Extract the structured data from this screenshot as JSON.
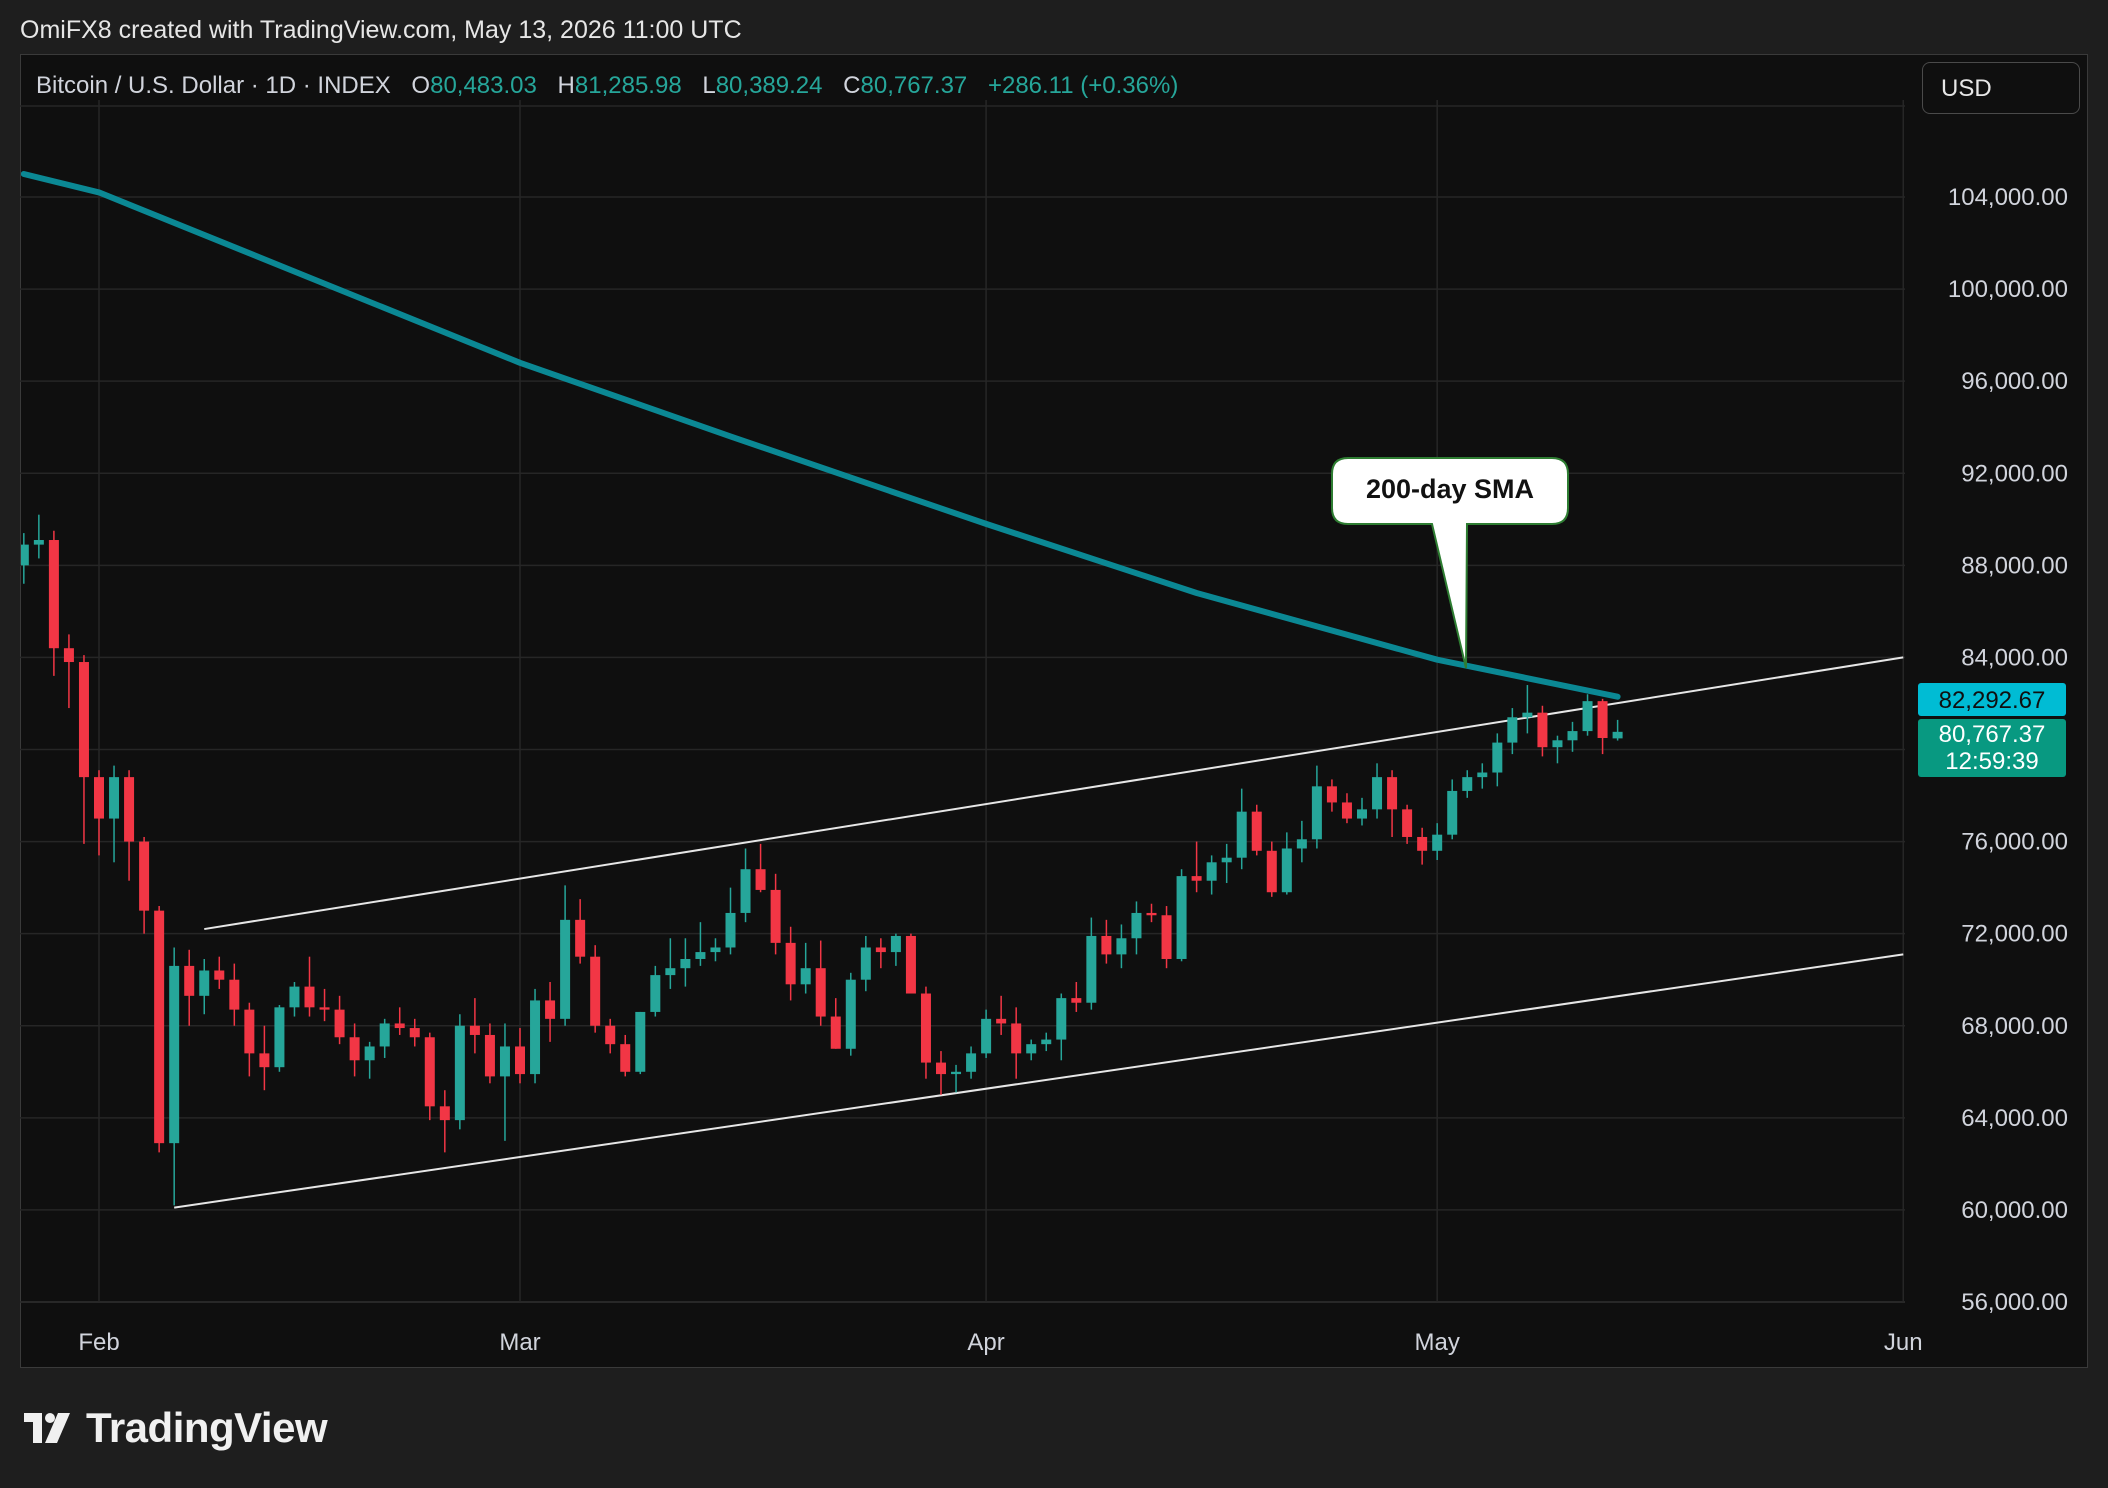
{
  "header": {
    "credit": "OmiFX8 created with TradingView.com, May 13, 2026 11:00 UTC"
  },
  "legend": {
    "symbol": "Bitcoin / U.S. Dollar · 1D · INDEX",
    "open_label": "O",
    "open": "80,483.03",
    "high_label": "H",
    "high": "81,285.98",
    "low_label": "L",
    "low": "80,389.24",
    "close_label": "C",
    "close": "80,767.37",
    "change": "+286.11 (+0.36%)"
  },
  "currency": {
    "selected": "USD"
  },
  "footer": {
    "logo_text": "TradingView",
    "logo_icon": "tradingview-logo-icon"
  },
  "colors": {
    "up": "#26a69a",
    "down": "#f23645",
    "sma": "#0b8894",
    "sma_badge": "#00bcd4",
    "channel": "#e6e6e6"
  },
  "chart_data": {
    "type": "candlestick",
    "annotation": "200-day SMA",
    "y_ticks": [
      "104,000.00",
      "100,000.00",
      "96,000.00",
      "92,000.00",
      "88,000.00",
      "84,000.00",
      "76,000.00",
      "72,000.00",
      "68,000.00",
      "64,000.00",
      "60,000.00",
      "56,000.00"
    ],
    "y_tick_values": [
      104000,
      100000,
      96000,
      92000,
      88000,
      84000,
      76000,
      72000,
      68000,
      64000,
      60000,
      56000
    ],
    "ylim": [
      56000,
      108000
    ],
    "x_ticks": [
      {
        "label": "Feb",
        "date": "2026-02-01"
      },
      {
        "label": "Mar",
        "date": "2026-03-01"
      },
      {
        "label": "Apr",
        "date": "2026-04-01"
      },
      {
        "label": "May",
        "date": "2026-05-01"
      },
      {
        "label": "Jun",
        "date": "2026-06-01"
      }
    ],
    "xlim": [
      "2026-01-27",
      "2026-06-02"
    ],
    "badges": {
      "sma_value": "82,292.67",
      "last_price": "80,767.37",
      "countdown": "12:59:39"
    },
    "candles": [
      {
        "date": "2026-01-27",
        "o": 88000,
        "h": 89400,
        "l": 87200,
        "c": 88900
      },
      {
        "date": "2026-01-28",
        "o": 88900,
        "h": 90200,
        "l": 88300,
        "c": 89100
      },
      {
        "date": "2026-01-29",
        "o": 89100,
        "h": 89500,
        "l": 83200,
        "c": 84400
      },
      {
        "date": "2026-01-30",
        "o": 84400,
        "h": 85000,
        "l": 81800,
        "c": 83800
      },
      {
        "date": "2026-01-31",
        "o": 83800,
        "h": 84100,
        "l": 75900,
        "c": 78800
      },
      {
        "date": "2026-02-01",
        "o": 78800,
        "h": 79100,
        "l": 75400,
        "c": 77000
      },
      {
        "date": "2026-02-02",
        "o": 77000,
        "h": 79300,
        "l": 75100,
        "c": 78800
      },
      {
        "date": "2026-02-03",
        "o": 78800,
        "h": 79100,
        "l": 74300,
        "c": 76000
      },
      {
        "date": "2026-02-04",
        "o": 76000,
        "h": 76200,
        "l": 72000,
        "c": 73000
      },
      {
        "date": "2026-02-05",
        "o": 73000,
        "h": 73200,
        "l": 62500,
        "c": 62900
      },
      {
        "date": "2026-02-06",
        "o": 62900,
        "h": 71400,
        "l": 60200,
        "c": 70600
      },
      {
        "date": "2026-02-07",
        "o": 70600,
        "h": 71300,
        "l": 68000,
        "c": 69300
      },
      {
        "date": "2026-02-08",
        "o": 69300,
        "h": 70900,
        "l": 68500,
        "c": 70400
      },
      {
        "date": "2026-02-09",
        "o": 70400,
        "h": 71000,
        "l": 69600,
        "c": 70000
      },
      {
        "date": "2026-02-10",
        "o": 70000,
        "h": 70700,
        "l": 68000,
        "c": 68700
      },
      {
        "date": "2026-02-11",
        "o": 68700,
        "h": 69000,
        "l": 65800,
        "c": 66800
      },
      {
        "date": "2026-02-12",
        "o": 66800,
        "h": 68000,
        "l": 65200,
        "c": 66200
      },
      {
        "date": "2026-02-13",
        "o": 66200,
        "h": 68900,
        "l": 66000,
        "c": 68800
      },
      {
        "date": "2026-02-14",
        "o": 68800,
        "h": 69900,
        "l": 68400,
        "c": 69700
      },
      {
        "date": "2026-02-15",
        "o": 69700,
        "h": 71000,
        "l": 68400,
        "c": 68800
      },
      {
        "date": "2026-02-16",
        "o": 68800,
        "h": 69600,
        "l": 68200,
        "c": 68700
      },
      {
        "date": "2026-02-17",
        "o": 68700,
        "h": 69300,
        "l": 67200,
        "c": 67500
      },
      {
        "date": "2026-02-18",
        "o": 67500,
        "h": 68100,
        "l": 65800,
        "c": 66500
      },
      {
        "date": "2026-02-19",
        "o": 66500,
        "h": 67300,
        "l": 65700,
        "c": 67100
      },
      {
        "date": "2026-02-20",
        "o": 67100,
        "h": 68300,
        "l": 66600,
        "c": 68100
      },
      {
        "date": "2026-02-21",
        "o": 68100,
        "h": 68800,
        "l": 67600,
        "c": 67900
      },
      {
        "date": "2026-02-22",
        "o": 67900,
        "h": 68300,
        "l": 67100,
        "c": 67500
      },
      {
        "date": "2026-02-23",
        "o": 67500,
        "h": 67700,
        "l": 63900,
        "c": 64500
      },
      {
        "date": "2026-02-24",
        "o": 64500,
        "h": 65200,
        "l": 62500,
        "c": 63900
      },
      {
        "date": "2026-02-25",
        "o": 63900,
        "h": 68500,
        "l": 63500,
        "c": 68000
      },
      {
        "date": "2026-02-26",
        "o": 68000,
        "h": 69200,
        "l": 66800,
        "c": 67600
      },
      {
        "date": "2026-02-27",
        "o": 67600,
        "h": 68100,
        "l": 65500,
        "c": 65800
      },
      {
        "date": "2026-02-28",
        "o": 65800,
        "h": 68100,
        "l": 63000,
        "c": 67100
      },
      {
        "date": "2026-03-01",
        "o": 67100,
        "h": 67900,
        "l": 65500,
        "c": 65900
      },
      {
        "date": "2026-03-02",
        "o": 65900,
        "h": 69600,
        "l": 65500,
        "c": 69100
      },
      {
        "date": "2026-03-03",
        "o": 69100,
        "h": 69900,
        "l": 67300,
        "c": 68300
      },
      {
        "date": "2026-03-04",
        "o": 68300,
        "h": 74100,
        "l": 68000,
        "c": 72600
      },
      {
        "date": "2026-03-05",
        "o": 72600,
        "h": 73500,
        "l": 70700,
        "c": 71000
      },
      {
        "date": "2026-03-06",
        "o": 71000,
        "h": 71500,
        "l": 67700,
        "c": 68000
      },
      {
        "date": "2026-03-07",
        "o": 68000,
        "h": 68300,
        "l": 66800,
        "c": 67200
      },
      {
        "date": "2026-03-08",
        "o": 67200,
        "h": 67600,
        "l": 65800,
        "c": 66000
      },
      {
        "date": "2026-03-09",
        "o": 66000,
        "h": 68600,
        "l": 65900,
        "c": 68600
      },
      {
        "date": "2026-03-10",
        "o": 68600,
        "h": 70600,
        "l": 68400,
        "c": 70200
      },
      {
        "date": "2026-03-11",
        "o": 70200,
        "h": 71800,
        "l": 69600,
        "c": 70500
      },
      {
        "date": "2026-03-12",
        "o": 70500,
        "h": 71800,
        "l": 69700,
        "c": 70900
      },
      {
        "date": "2026-03-13",
        "o": 70900,
        "h": 72500,
        "l": 70600,
        "c": 71200
      },
      {
        "date": "2026-03-14",
        "o": 71200,
        "h": 71800,
        "l": 70800,
        "c": 71400
      },
      {
        "date": "2026-03-15",
        "o": 71400,
        "h": 74000,
        "l": 71100,
        "c": 72900
      },
      {
        "date": "2026-03-16",
        "o": 72900,
        "h": 75700,
        "l": 72500,
        "c": 74800
      },
      {
        "date": "2026-03-17",
        "o": 74800,
        "h": 75900,
        "l": 73800,
        "c": 73900
      },
      {
        "date": "2026-03-18",
        "o": 73900,
        "h": 74600,
        "l": 71100,
        "c": 71600
      },
      {
        "date": "2026-03-19",
        "o": 71600,
        "h": 72300,
        "l": 69100,
        "c": 69800
      },
      {
        "date": "2026-03-20",
        "o": 69800,
        "h": 71600,
        "l": 69400,
        "c": 70500
      },
      {
        "date": "2026-03-21",
        "o": 70500,
        "h": 71700,
        "l": 68000,
        "c": 68400
      },
      {
        "date": "2026-03-22",
        "o": 68400,
        "h": 69200,
        "l": 67000,
        "c": 67000
      },
      {
        "date": "2026-03-23",
        "o": 67000,
        "h": 70300,
        "l": 66700,
        "c": 70000
      },
      {
        "date": "2026-03-24",
        "o": 70000,
        "h": 71900,
        "l": 69500,
        "c": 71400
      },
      {
        "date": "2026-03-25",
        "o": 71400,
        "h": 71800,
        "l": 70500,
        "c": 71200
      },
      {
        "date": "2026-03-26",
        "o": 71200,
        "h": 72000,
        "l": 70600,
        "c": 71900
      },
      {
        "date": "2026-03-27",
        "o": 71900,
        "h": 72000,
        "l": 69600,
        "c": 69400
      },
      {
        "date": "2026-03-28",
        "o": 69400,
        "h": 69700,
        "l": 65700,
        "c": 66400
      },
      {
        "date": "2026-03-29",
        "o": 66400,
        "h": 66900,
        "l": 65000,
        "c": 65900
      },
      {
        "date": "2026-03-30",
        "o": 65900,
        "h": 66300,
        "l": 65100,
        "c": 66000
      },
      {
        "date": "2026-03-31",
        "o": 66000,
        "h": 67100,
        "l": 65700,
        "c": 66800
      },
      {
        "date": "2026-04-01",
        "o": 66800,
        "h": 68700,
        "l": 66600,
        "c": 68300
      },
      {
        "date": "2026-04-02",
        "o": 68300,
        "h": 69300,
        "l": 67600,
        "c": 68100
      },
      {
        "date": "2026-04-03",
        "o": 68100,
        "h": 68800,
        "l": 65700,
        "c": 66800
      },
      {
        "date": "2026-04-04",
        "o": 66800,
        "h": 67400,
        "l": 66500,
        "c": 67200
      },
      {
        "date": "2026-04-05",
        "o": 67200,
        "h": 67700,
        "l": 66900,
        "c": 67400
      },
      {
        "date": "2026-04-06",
        "o": 67400,
        "h": 69400,
        "l": 66500,
        "c": 69200
      },
      {
        "date": "2026-04-07",
        "o": 69200,
        "h": 69900,
        "l": 68600,
        "c": 69000
      },
      {
        "date": "2026-04-08",
        "o": 69000,
        "h": 72700,
        "l": 68700,
        "c": 71900
      },
      {
        "date": "2026-04-09",
        "o": 71900,
        "h": 72600,
        "l": 70700,
        "c": 71100
      },
      {
        "date": "2026-04-10",
        "o": 71100,
        "h": 72400,
        "l": 70500,
        "c": 71800
      },
      {
        "date": "2026-04-11",
        "o": 71800,
        "h": 73400,
        "l": 71100,
        "c": 72900
      },
      {
        "date": "2026-04-12",
        "o": 72900,
        "h": 73300,
        "l": 72500,
        "c": 72800
      },
      {
        "date": "2026-04-13",
        "o": 72800,
        "h": 73200,
        "l": 70500,
        "c": 70900
      },
      {
        "date": "2026-04-14",
        "o": 70900,
        "h": 74800,
        "l": 70800,
        "c": 74500
      },
      {
        "date": "2026-04-15",
        "o": 74500,
        "h": 76000,
        "l": 73800,
        "c": 74300
      },
      {
        "date": "2026-04-16",
        "o": 74300,
        "h": 75400,
        "l": 73700,
        "c": 75100
      },
      {
        "date": "2026-04-17",
        "o": 75100,
        "h": 75900,
        "l": 74200,
        "c": 75300
      },
      {
        "date": "2026-04-18",
        "o": 75300,
        "h": 78300,
        "l": 74800,
        "c": 77300
      },
      {
        "date": "2026-04-19",
        "o": 77300,
        "h": 77600,
        "l": 75400,
        "c": 75600
      },
      {
        "date": "2026-04-20",
        "o": 75600,
        "h": 76000,
        "l": 73600,
        "c": 73800
      },
      {
        "date": "2026-04-21",
        "o": 73800,
        "h": 76400,
        "l": 73700,
        "c": 75700
      },
      {
        "date": "2026-04-22",
        "o": 75700,
        "h": 76900,
        "l": 75100,
        "c": 76100
      },
      {
        "date": "2026-04-23",
        "o": 76100,
        "h": 79300,
        "l": 75700,
        "c": 78400
      },
      {
        "date": "2026-04-24",
        "o": 78400,
        "h": 78700,
        "l": 77300,
        "c": 77700
      },
      {
        "date": "2026-04-25",
        "o": 77700,
        "h": 78100,
        "l": 76800,
        "c": 77000
      },
      {
        "date": "2026-04-26",
        "o": 77000,
        "h": 77900,
        "l": 76700,
        "c": 77400
      },
      {
        "date": "2026-04-27",
        "o": 77400,
        "h": 79400,
        "l": 77000,
        "c": 78800
      },
      {
        "date": "2026-04-28",
        "o": 78800,
        "h": 79100,
        "l": 76200,
        "c": 77400
      },
      {
        "date": "2026-04-29",
        "o": 77400,
        "h": 77600,
        "l": 75900,
        "c": 76200
      },
      {
        "date": "2026-04-30",
        "o": 76200,
        "h": 76600,
        "l": 75000,
        "c": 75600
      },
      {
        "date": "2026-05-01",
        "o": 75600,
        "h": 76800,
        "l": 75200,
        "c": 76300
      },
      {
        "date": "2026-05-02",
        "o": 76300,
        "h": 78700,
        "l": 76100,
        "c": 78200
      },
      {
        "date": "2026-05-03",
        "o": 78200,
        "h": 79100,
        "l": 77900,
        "c": 78800
      },
      {
        "date": "2026-05-04",
        "o": 78800,
        "h": 79400,
        "l": 78300,
        "c": 79000
      },
      {
        "date": "2026-05-05",
        "o": 79000,
        "h": 80700,
        "l": 78400,
        "c": 80300
      },
      {
        "date": "2026-05-06",
        "o": 80300,
        "h": 81800,
        "l": 79800,
        "c": 81400
      },
      {
        "date": "2026-05-07",
        "o": 81400,
        "h": 82800,
        "l": 80700,
        "c": 81600
      },
      {
        "date": "2026-05-08",
        "o": 81600,
        "h": 81900,
        "l": 79700,
        "c": 80100
      },
      {
        "date": "2026-05-09",
        "o": 80100,
        "h": 80600,
        "l": 79400,
        "c": 80400
      },
      {
        "date": "2026-05-10",
        "o": 80400,
        "h": 81200,
        "l": 79900,
        "c": 80800
      },
      {
        "date": "2026-05-11",
        "o": 80800,
        "h": 82400,
        "l": 80600,
        "c": 82100
      },
      {
        "date": "2026-05-12",
        "o": 82100,
        "h": 82200,
        "l": 79800,
        "c": 80500
      },
      {
        "date": "2026-05-13",
        "o": 80483.03,
        "h": 81285.98,
        "l": 80389.24,
        "c": 80767.37
      }
    ],
    "sma_200": [
      {
        "date": "2026-01-27",
        "v": 105000
      },
      {
        "date": "2026-02-01",
        "v": 104200
      },
      {
        "date": "2026-02-15",
        "v": 100500
      },
      {
        "date": "2026-03-01",
        "v": 96800
      },
      {
        "date": "2026-03-15",
        "v": 93600
      },
      {
        "date": "2026-04-01",
        "v": 89800
      },
      {
        "date": "2026-04-15",
        "v": 86800
      },
      {
        "date": "2026-05-01",
        "v": 83900
      },
      {
        "date": "2026-05-13",
        "v": 82292.67
      }
    ],
    "channel": {
      "upper": [
        {
          "date": "2026-02-08",
          "v": 72200
        },
        {
          "date": "2026-06-01",
          "v": 84000
        }
      ],
      "lower": [
        {
          "date": "2026-02-06",
          "v": 60100
        },
        {
          "date": "2026-06-01",
          "v": 71100
        }
      ]
    }
  }
}
